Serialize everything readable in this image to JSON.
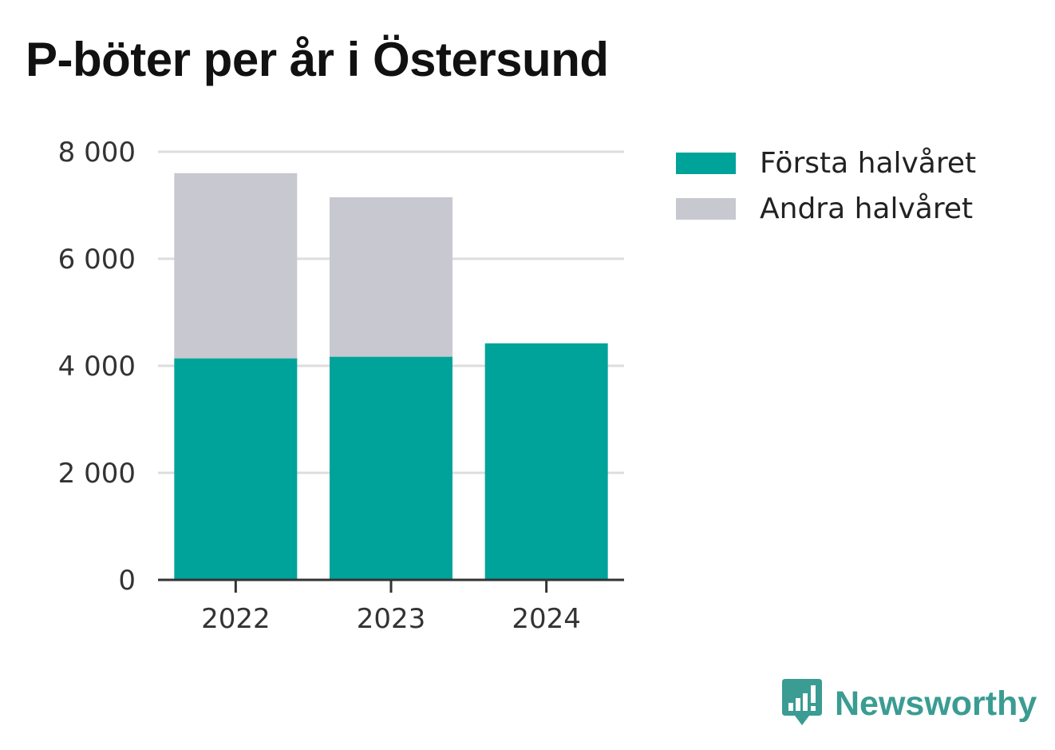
{
  "title": "P-böter per år i Östersund",
  "colors": {
    "first_half": "#00a39a",
    "second_half": "#c8c8d0",
    "grid": "#dddddd",
    "axis": "#333333",
    "brand": "#3a9c92"
  },
  "legend": {
    "items": [
      {
        "label": "Första halvåret",
        "color": "#00a39a"
      },
      {
        "label": "Andra halvåret",
        "color": "#c8c8d0"
      }
    ]
  },
  "chart_data": {
    "type": "bar",
    "stacked": true,
    "title": "P-böter per år i Östersund",
    "categories": [
      "2022",
      "2023",
      "2024"
    ],
    "series": [
      {
        "name": "Första halvåret",
        "values": [
          4140,
          4170,
          4420
        ],
        "color": "#00a39a"
      },
      {
        "name": "Andra halvåret",
        "values": [
          3460,
          2980,
          0
        ],
        "color": "#c8c8d0"
      }
    ],
    "xlabel": "",
    "ylabel": "",
    "ylim": [
      0,
      8000
    ],
    "yticks": [
      0,
      2000,
      4000,
      6000,
      8000
    ],
    "ytick_labels": [
      "0",
      "2 000",
      "4 000",
      "6 000",
      "8 000"
    ],
    "grid": true,
    "legend_position": "right"
  },
  "brand": {
    "icon": "newsworthy-logo-icon",
    "name": "Newsworthy"
  }
}
